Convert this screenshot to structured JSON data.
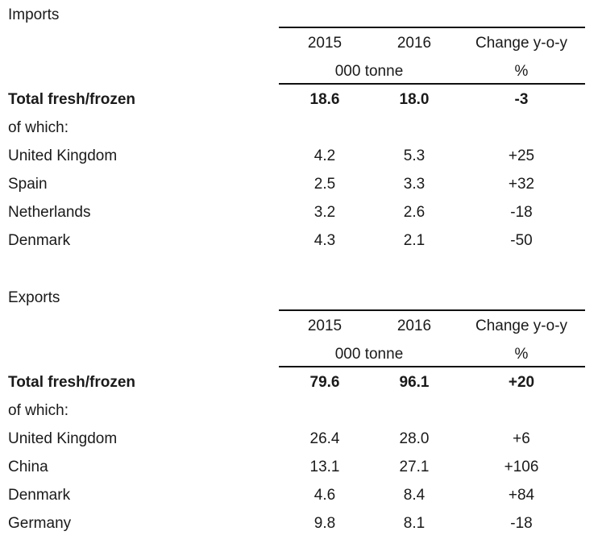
{
  "sections": [
    {
      "title": "Imports",
      "headers": {
        "col1": "2015",
        "col2": "2016",
        "col3": "Change y-o-y",
        "unit_left": "000 tonne",
        "unit_right": "%"
      },
      "total": {
        "label": "Total fresh/frozen",
        "v2015": "18.6",
        "v2016": "18.0",
        "change": "-3"
      },
      "of_which": "of which:",
      "rows": [
        {
          "label": "United Kingdom",
          "v2015": "4.2",
          "v2016": "5.3",
          "change": "+25"
        },
        {
          "label": "Spain",
          "v2015": "2.5",
          "v2016": "3.3",
          "change": "+32"
        },
        {
          "label": "Netherlands",
          "v2015": "3.2",
          "v2016": "2.6",
          "change": "-18"
        },
        {
          "label": "Denmark",
          "v2015": "4.3",
          "v2016": "2.1",
          "change": "-50"
        }
      ]
    },
    {
      "title": "Exports",
      "headers": {
        "col1": "2015",
        "col2": "2016",
        "col3": "Change y-o-y",
        "unit_left": "000 tonne",
        "unit_right": "%"
      },
      "total": {
        "label": "Total fresh/frozen",
        "v2015": "79.6",
        "v2016": "96.1",
        "change": "+20"
      },
      "of_which": "of which:",
      "rows": [
        {
          "label": "United Kingdom",
          "v2015": "26.4",
          "v2016": "28.0",
          "change": "+6"
        },
        {
          "label": "China",
          "v2015": "13.1",
          "v2016": "27.1",
          "change": "+106"
        },
        {
          "label": "Denmark",
          "v2015": "4.6",
          "v2016": "8.4",
          "change": "+84"
        },
        {
          "label": "Germany",
          "v2015": "9.8",
          "v2016": "8.1",
          "change": "-18"
        }
      ]
    }
  ]
}
